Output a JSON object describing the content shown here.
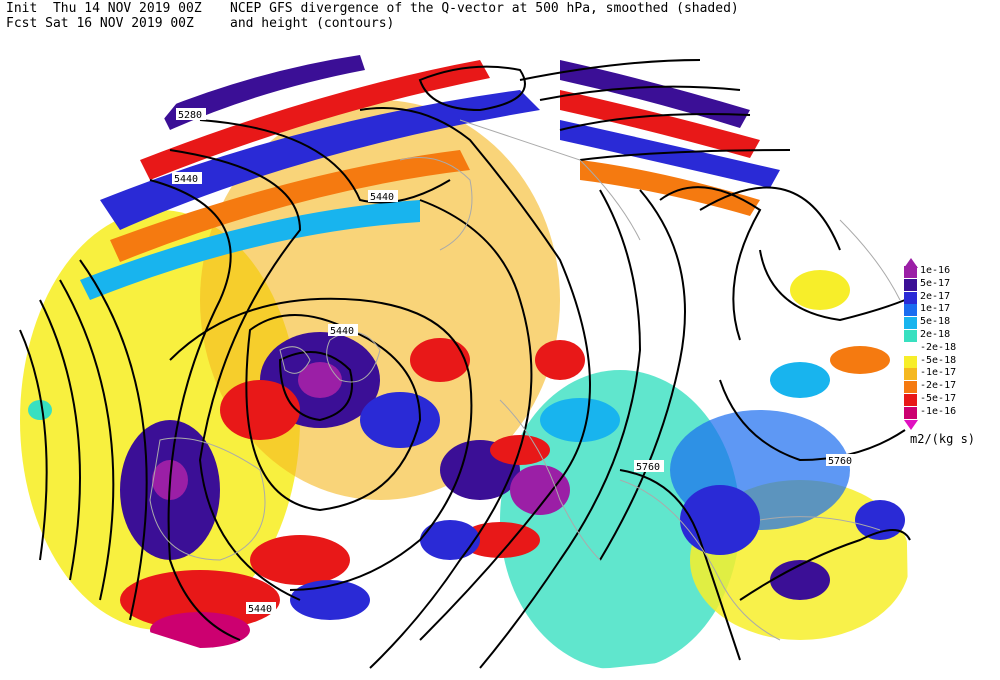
{
  "header": {
    "init_line": "Init  Thu 14 NOV 2019 00Z",
    "fcst_line": "Fcst Sat 16 NOV 2019 00Z",
    "title_line1": "NCEP GFS divergence of the Q-vector at 500 hPa, smoothed (shaded)",
    "title_line2": "and height (contours)"
  },
  "contour_labels": [
    "5280",
    "5440",
    "5440",
    "5440",
    "5440",
    "5760",
    "5760"
  ],
  "legend": {
    "units": "m2/(kg s)",
    "items": [
      {
        "label": "1e-16",
        "color": "#9b1fa6"
      },
      {
        "label": "5e-17",
        "color": "#3b0f96"
      },
      {
        "label": "2e-17",
        "color": "#2a2ad6"
      },
      {
        "label": "1e-17",
        "color": "#1a6cf0"
      },
      {
        "label": "5e-18",
        "color": "#18b4ee"
      },
      {
        "label": "2e-18",
        "color": "#38e0c0"
      },
      {
        "label": "-2e-18",
        "color": "#ffffff"
      },
      {
        "label": "-5e-18",
        "color": "#f7ee2a"
      },
      {
        "label": "-1e-17",
        "color": "#f5b820"
      },
      {
        "label": "-2e-17",
        "color": "#f57a10"
      },
      {
        "label": "-5e-17",
        "color": "#e81818"
      },
      {
        "label": "-1e-16",
        "color": "#cc0070"
      }
    ],
    "top_arrow_color": "#9b1fa6",
    "bottom_arrow_color": "#e010c0"
  }
}
